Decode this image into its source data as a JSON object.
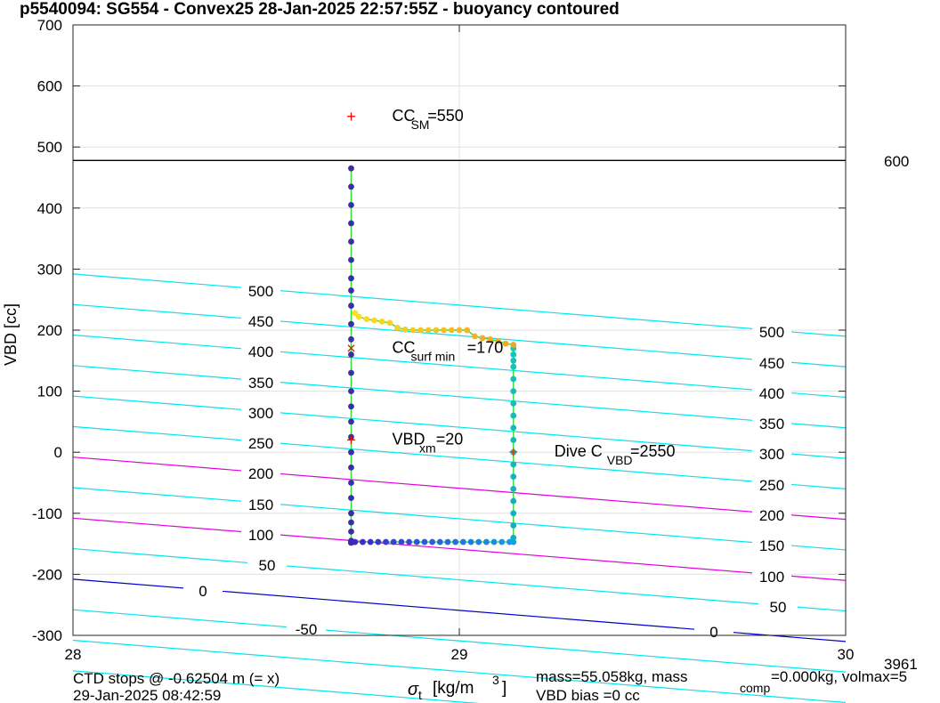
{
  "chart_data": {
    "type": "scatter",
    "title": "p5540094: SG554 - Convex25 28-Jan-2025 22:57:55Z - buoyancy contoured",
    "xlabel": "σ",
    "xlabel_sub": "t",
    "xlabel_unit": "[kg/m",
    "xlabel_sup": "3",
    "xlabel_end": "]",
    "ylabel": "VBD [cc]",
    "xlim": [
      28,
      30
    ],
    "ylim": [
      -300,
      700
    ],
    "x_ticks": [
      28,
      29,
      30
    ],
    "y_ticks": [
      -300,
      -200,
      -100,
      0,
      100,
      200,
      300,
      400,
      500,
      600,
      700
    ],
    "grid": true,
    "reference_line": {
      "y": 478,
      "label": "600"
    },
    "contours": {
      "left_labels": [
        "500",
        "450",
        "400",
        "350",
        "300",
        "250",
        "200",
        "150",
        "100",
        "50",
        "0",
        "-50"
      ],
      "right_labels": [
        "500",
        "450",
        "400",
        "350",
        "300",
        "250",
        "200",
        "150",
        "100",
        "50",
        "0"
      ],
      "colors": {
        "cyan": "#00e5ee",
        "magenta": "#e000e0",
        "blue": "#0000c8"
      }
    },
    "markers": [
      {
        "name": "CC_SM",
        "x": 28.72,
        "y": 550,
        "symbol": "+",
        "color": "#ff0000",
        "label": "CC",
        "label_sub": "SM",
        "label_val": "=550"
      },
      {
        "name": "CC_surf_min",
        "x": 28.72,
        "y": 170,
        "symbol": "×",
        "color": "#cc2200",
        "label": "CC",
        "label_sub": "surf min",
        "label_val": "=170"
      },
      {
        "name": "VBD_xm",
        "x": 28.72,
        "y": 20,
        "symbol": "+",
        "color": "#cc2200",
        "label": "VBD",
        "label_sub": "xm",
        "label_val": "=20"
      },
      {
        "name": "Dive_C_VBD",
        "x": 29.14,
        "y": 0,
        "symbol": "+",
        "color": "#cc4400",
        "label": "Dive C",
        "label_sub": "VBD",
        "label_val": "=2550"
      }
    ],
    "series": [
      {
        "x": [
          28.72,
          28.72,
          28.72,
          28.72,
          28.72,
          28.72,
          28.72,
          28.72,
          28.72,
          28.72,
          28.72,
          28.72,
          28.72,
          28.72,
          28.72,
          28.72,
          28.72,
          28.72,
          28.72,
          28.72,
          28.72,
          28.72,
          28.72,
          28.72,
          28.72,
          28.72,
          28.72,
          28.72,
          28.72,
          28.72,
          28.72,
          28.72,
          28.72
        ],
        "y": [
          465,
          435,
          405,
          375,
          345,
          315,
          285,
          265,
          240,
          210,
          185,
          160,
          130,
          100,
          75,
          50,
          25,
          0,
          -25,
          -50,
          -75,
          -100,
          -115,
          -130,
          -145,
          -148,
          -148,
          -148,
          -148,
          -148,
          -148,
          -148,
          -148
        ]
      },
      {
        "x": [
          28.73,
          28.75,
          28.77,
          28.79,
          28.81,
          28.83,
          28.85,
          28.87,
          28.89,
          28.91,
          28.93,
          28.95,
          28.97,
          28.99,
          29.01,
          29.03,
          29.05,
          29.07,
          29.09,
          29.11,
          29.13,
          29.14
        ],
        "y": [
          -147,
          -147,
          -147,
          -147,
          -147,
          -147,
          -147,
          -147,
          -147,
          -147,
          -147,
          -147,
          -147,
          -147,
          -147,
          -147,
          -147,
          -147,
          -147,
          -147,
          -147,
          -147
        ]
      },
      {
        "x": [
          29.14,
          29.14,
          29.14,
          29.14,
          29.14,
          29.14,
          29.14,
          29.14,
          29.14,
          29.14,
          29.14,
          29.14,
          29.14,
          29.14,
          29.14,
          29.14,
          29.14,
          29.14
        ],
        "y": [
          -140,
          -120,
          -100,
          -80,
          -60,
          -40,
          -20,
          0,
          20,
          40,
          60,
          80,
          100,
          120,
          140,
          150,
          160,
          170
        ]
      },
      {
        "x": [
          28.73,
          28.74,
          28.76,
          28.78,
          28.8,
          28.82,
          28.84,
          28.86,
          28.88,
          28.9,
          28.92,
          28.94,
          28.96,
          28.98,
          29.0,
          29.02,
          29.04,
          29.06,
          29.08,
          29.1,
          29.12,
          29.14
        ],
        "y": [
          228,
          222,
          218,
          216,
          214,
          212,
          204,
          201,
          200,
          200,
          200,
          200,
          200,
          200,
          200,
          200,
          190,
          187,
          185,
          182,
          178,
          176
        ]
      }
    ]
  },
  "footer": {
    "left_line1": "CTD stops @ -0.62504 m (= x)",
    "left_line2": "29-Jan-2025 08:42:59",
    "mid_line1": "mass=55.058kg, mass",
    "mid_sub": "comp",
    "mid_rest": "=0.000kg, volmax=5",
    "mid_line2": "VBD bias =0 cc",
    "right_num": "3961"
  }
}
